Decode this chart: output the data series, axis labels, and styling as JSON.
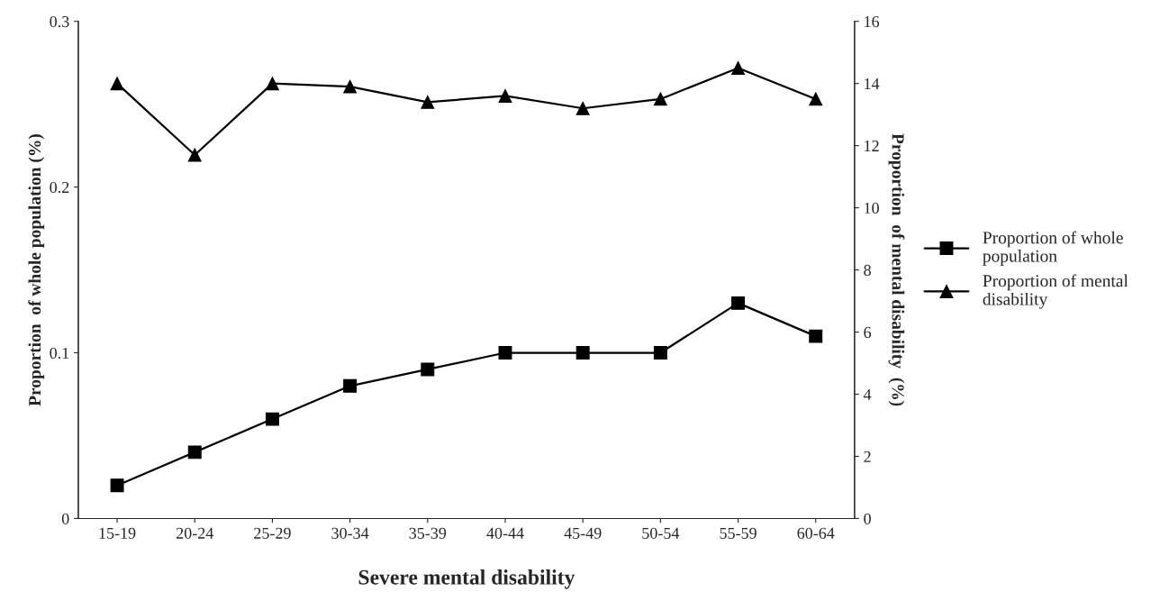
{
  "chart_data": {
    "type": "line",
    "xlabel": "Severe mental disability",
    "ylabel": "Proportion  of whole population (%)",
    "y2label": "Proportion  of mental disability  (%)",
    "categories": [
      "15-19",
      "20-24",
      "25-29",
      "30-34",
      "35-39",
      "40-44",
      "45-49",
      "50-54",
      "55-59",
      "60-64"
    ],
    "series": [
      {
        "name": "Proportion of whole\npopulation",
        "color": "#000000",
        "marker": "square",
        "values": [
          0.02,
          0.04,
          0.06,
          0.08,
          0.09,
          0.1,
          0.1,
          0.1,
          0.13,
          0.11
        ]
      },
      {
        "name": "Proportion of mental\ndisability",
        "color": "#000000",
        "marker": "triangle",
        "axis": "y2",
        "values": [
          14.0,
          11.7,
          14.0,
          13.9,
          13.4,
          13.6,
          13.2,
          13.5,
          14.5,
          13.5
        ]
      }
    ],
    "ylim": [
      0,
      0.3
    ],
    "yticks": [
      0,
      0.1,
      0.2,
      0.3
    ],
    "y2lim": [
      0,
      16
    ],
    "y2ticks": [
      0,
      2,
      4,
      6,
      8,
      10,
      12,
      14,
      16
    ],
    "grid": false,
    "legend": "right",
    "line_style": "solid"
  }
}
